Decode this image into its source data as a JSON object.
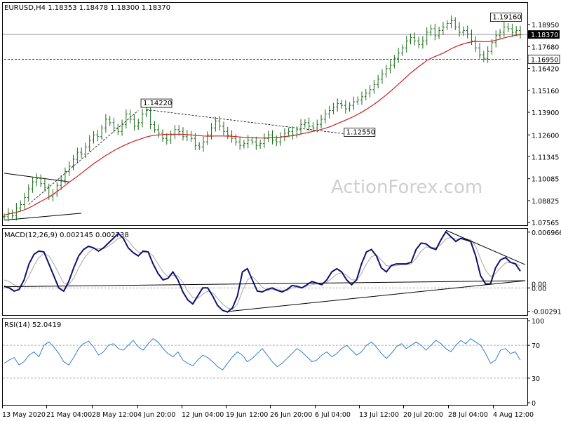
{
  "chart_data": [
    {
      "type": "candlestick",
      "name": "price",
      "header": "EURUSD,H4  1.18353 1.18478 1.18300 1.18370",
      "watermark": "ActionForex.com",
      "yticks": [
        "1.18950",
        "1.17680",
        "1.16420",
        "1.15160",
        "1.13900",
        "1.12600",
        "1.11345",
        "1.10085",
        "1.08825",
        "1.07565"
      ],
      "ytick_values": [
        1.1895,
        1.1768,
        1.1642,
        1.1516,
        1.139,
        1.126,
        1.11345,
        1.10085,
        1.08825,
        1.07565
      ],
      "ylim": [
        1.0745,
        1.2015
      ],
      "current_price_label": "1.18370",
      "current_price": 1.1837,
      "support_label": "1.16950",
      "support_price": 1.1695,
      "annotations": [
        {
          "text": "1.14220",
          "value": 1.1422,
          "x_index": 34
        },
        {
          "text": "1.12550",
          "value": 1.1255,
          "x_index": 84
        },
        {
          "text": "1.19160",
          "value": 1.1916,
          "x_index": 120
        }
      ],
      "close": [
        1.079,
        1.081,
        1.0795,
        1.084,
        1.086,
        1.09,
        1.095,
        1.099,
        1.101,
        1.098,
        1.096,
        1.0905,
        1.092,
        1.097,
        1.1,
        1.105,
        1.108,
        1.112,
        1.116,
        1.115,
        1.119,
        1.123,
        1.126,
        1.125,
        1.13,
        1.135,
        1.133,
        1.13,
        1.128,
        1.132,
        1.138,
        1.135,
        1.131,
        1.133,
        1.138,
        1.14,
        1.132,
        1.129,
        1.127,
        1.124,
        1.123,
        1.126,
        1.129,
        1.128,
        1.125,
        1.126,
        1.124,
        1.12,
        1.119,
        1.122,
        1.126,
        1.13,
        1.134,
        1.131,
        1.128,
        1.126,
        1.124,
        1.122,
        1.12,
        1.121,
        1.123,
        1.122,
        1.12,
        1.121,
        1.124,
        1.126,
        1.123,
        1.122,
        1.125,
        1.127,
        1.128,
        1.126,
        1.129,
        1.132,
        1.133,
        1.131,
        1.13,
        1.132,
        1.135,
        1.138,
        1.14,
        1.142,
        1.144,
        1.143,
        1.141,
        1.143,
        1.145,
        1.146,
        1.148,
        1.15,
        1.152,
        1.155,
        1.158,
        1.161,
        1.164,
        1.166,
        1.17,
        1.173,
        1.176,
        1.18,
        1.182,
        1.18,
        1.178,
        1.18,
        1.185,
        1.187,
        1.183,
        1.186,
        1.188,
        1.19,
        1.1916,
        1.188,
        1.185,
        1.186,
        1.184,
        1.18,
        1.176,
        1.172,
        1.17,
        1.174,
        1.179,
        1.183,
        1.185,
        1.188,
        1.187,
        1.185,
        1.186,
        1.1837
      ],
      "ma": [
        1.08,
        1.0805,
        1.081,
        1.0815,
        1.0822,
        1.083,
        1.084,
        1.0852,
        1.0865,
        1.0878,
        1.089,
        1.0903,
        1.0918,
        1.0935,
        1.0952,
        1.097,
        1.0988,
        1.1005,
        1.1022,
        1.104,
        1.1058,
        1.1076,
        1.1094,
        1.111,
        1.1126,
        1.1142,
        1.1156,
        1.117,
        1.1182,
        1.1194,
        1.1205,
        1.1215,
        1.1224,
        1.1232,
        1.124,
        1.1248,
        1.1254,
        1.1258,
        1.126,
        1.1262,
        1.1263,
        1.1264,
        1.1264,
        1.1264,
        1.1263,
        1.1262,
        1.126,
        1.1258,
        1.1256,
        1.1254,
        1.1253,
        1.1253,
        1.1254,
        1.1254,
        1.1254,
        1.1253,
        1.1252,
        1.125,
        1.1248,
        1.1246,
        1.1245,
        1.1244,
        1.1243,
        1.1242,
        1.1242,
        1.1243,
        1.1244,
        1.1245,
        1.1247,
        1.125,
        1.1253,
        1.1256,
        1.126,
        1.1265,
        1.127,
        1.1275,
        1.128,
        1.1285,
        1.1291,
        1.1298,
        1.1306,
        1.1315,
        1.1325,
        1.1335,
        1.1345,
        1.1355,
        1.1366,
        1.1378,
        1.1391,
        1.1405,
        1.142,
        1.1436,
        1.1453,
        1.1471,
        1.149,
        1.151,
        1.153,
        1.1551,
        1.1572,
        1.1594,
        1.1615,
        1.1634,
        1.1652,
        1.167,
        1.1688,
        1.17,
        1.171,
        1.172,
        1.173,
        1.1742,
        1.1755,
        1.1766,
        1.1775,
        1.1783,
        1.179,
        1.1795,
        1.1797,
        1.1797,
        1.1796,
        1.1796,
        1.1799,
        1.1804,
        1.181,
        1.1817,
        1.1823,
        1.1828,
        1.1833,
        1.1836
      ],
      "trendlines": [
        {
          "from": [
            0,
            1.104
          ],
          "to": [
            16,
            1.099
          ],
          "style": "solid"
        },
        {
          "from": [
            0,
            1.077
          ],
          "to": [
            19,
            1.081
          ],
          "style": "solid"
        },
        {
          "from": [
            6,
            1.086
          ],
          "to": [
            33,
            1.14
          ],
          "style": "dashed"
        },
        {
          "from": [
            35,
            1.1405
          ],
          "to": [
            86,
            1.126
          ],
          "style": "dashed"
        },
        {
          "from": [
            0,
            1.1695
          ],
          "to": [
            127,
            1.1695
          ],
          "style": "dashed"
        }
      ]
    },
    {
      "type": "line",
      "name": "macd",
      "header": "MACD(12,26,9) 0.002145 0.002738",
      "yticks": [
        "0.006966",
        "0.00",
        "-0.002913"
      ],
      "ytick_values": [
        0.006966,
        0.0,
        -0.002913
      ],
      "extra_tick_label": "0.00",
      "ylim": [
        -0.0033,
        0.0073
      ],
      "macd": [
        0.0002,
        0.0,
        -0.0004,
        -0.0002,
        0.001,
        0.003,
        0.0042,
        0.0046,
        0.0045,
        0.003,
        0.0015,
        0.0,
        -0.0004,
        0.0008,
        0.0025,
        0.004,
        0.0048,
        0.0052,
        0.005,
        0.0046,
        0.005,
        0.0056,
        0.0062,
        0.0068,
        0.0062,
        0.005,
        0.0044,
        0.004,
        0.0046,
        0.0045,
        0.003,
        0.0018,
        0.001,
        0.0012,
        0.002,
        0.001,
        -0.0005,
        -0.0015,
        -0.002,
        -0.001,
        0.0,
        0.0,
        -0.001,
        -0.0022,
        -0.0028,
        -0.003,
        -0.0025,
        -0.001,
        0.002,
        0.0024,
        0.001,
        -0.0004,
        -0.0005,
        -0.0002,
        0.0,
        -0.0003,
        -0.0005,
        -0.0002,
        0.0003,
        0.0002,
        0.0,
        0.0004,
        0.0008,
        0.0006,
        0.0004,
        0.001,
        0.002,
        0.0024,
        0.002,
        0.001,
        0.0004,
        0.001,
        0.003,
        0.0045,
        0.0048,
        0.004,
        0.0025,
        0.002,
        0.0028,
        0.003,
        0.003,
        0.003,
        0.0032,
        0.0048,
        0.0056,
        0.0055,
        0.005,
        0.0048,
        0.006,
        0.007,
        0.0064,
        0.0058,
        0.0062,
        0.006,
        0.0058,
        0.004,
        0.0015,
        0.0005,
        0.0005,
        0.0025,
        0.0035,
        0.0038,
        0.0032,
        0.003,
        0.0021
      ],
      "signal": [
        0.001,
        0.0008,
        0.0004,
        0.0,
        0.0004,
        0.0015,
        0.0028,
        0.0038,
        0.0043,
        0.004,
        0.003,
        0.0018,
        0.0006,
        0.0004,
        0.0012,
        0.0025,
        0.0036,
        0.0044,
        0.0049,
        0.0049,
        0.0049,
        0.0052,
        0.0057,
        0.0062,
        0.0064,
        0.0059,
        0.0051,
        0.0045,
        0.0044,
        0.0045,
        0.004,
        0.003,
        0.002,
        0.0014,
        0.0016,
        0.0015,
        0.0007,
        -0.0004,
        -0.0012,
        -0.0013,
        -0.0008,
        -0.0004,
        -0.0006,
        -0.0013,
        -0.002,
        -0.0025,
        -0.0027,
        -0.002,
        -0.0004,
        0.001,
        0.0014,
        0.0008,
        0.0001,
        -0.0003,
        -0.0002,
        -0.0002,
        -0.0003,
        -0.0003,
        0.0,
        0.0001,
        0.0001,
        0.0002,
        0.0004,
        0.0005,
        0.0005,
        0.0007,
        0.0012,
        0.0017,
        0.0019,
        0.0016,
        0.001,
        0.001,
        0.0018,
        0.003,
        0.0039,
        0.0041,
        0.0035,
        0.0028,
        0.0027,
        0.0028,
        0.0029,
        0.0029,
        0.003,
        0.0037,
        0.0046,
        0.0051,
        0.0051,
        0.005,
        0.0054,
        0.0061,
        0.0063,
        0.0061,
        0.0061,
        0.0061,
        0.006,
        0.0052,
        0.0036,
        0.0022,
        0.0014,
        0.0018,
        0.0025,
        0.0031,
        0.0032,
        0.0031,
        0.0027
      ],
      "trendlines": [
        {
          "from": [
            0,
            0.00015
          ],
          "to": [
            105,
            0.0009
          ],
          "style": "solid"
        },
        {
          "from": [
            45,
            -0.00295
          ],
          "to": [
            105,
            0.0009
          ],
          "style": "solid"
        },
        {
          "from": [
            89,
            0.0072
          ],
          "to": [
            105,
            0.0029
          ],
          "style": "solid"
        }
      ]
    },
    {
      "type": "line",
      "name": "rsi",
      "header": "RSI(14) 52.0419",
      "yticks": [
        "100",
        "70",
        "30",
        "0"
      ],
      "ytick_values": [
        100,
        70,
        30,
        0
      ],
      "levels": [
        70,
        30
      ],
      "ylim": [
        0,
        100
      ],
      "values": [
        48,
        52,
        55,
        46,
        50,
        58,
        62,
        56,
        70,
        74,
        68,
        60,
        50,
        46,
        55,
        66,
        72,
        75,
        68,
        58,
        62,
        70,
        72,
        66,
        64,
        70,
        76,
        68,
        64,
        72,
        78,
        74,
        66,
        60,
        56,
        62,
        52,
        48,
        45,
        52,
        58,
        55,
        50,
        44,
        40,
        48,
        56,
        62,
        58,
        50,
        54,
        60,
        66,
        58,
        50,
        44,
        48,
        54,
        60,
        66,
        62,
        56,
        50,
        52,
        58,
        62,
        56,
        60,
        66,
        70,
        64,
        58,
        62,
        70,
        74,
        68,
        60,
        54,
        60,
        68,
        72,
        66,
        70,
        74,
        70,
        64,
        70,
        76,
        72,
        66,
        62,
        70,
        76,
        72,
        78,
        74,
        70,
        60,
        48,
        52,
        64,
        66,
        60,
        62,
        52
      ],
      "xticks": [
        "13 May 2020",
        "21 May 04:00",
        "28 May 12:00",
        "4 Jun 20:00",
        "12 Jun 04:00",
        "19 Jun 12:00",
        "26 Jun 20:00",
        "6 Jul 04:00",
        "13 Jul 12:00",
        "20 Jul 20:00",
        "28 Jul 04:00",
        "4 Aug 12:00"
      ],
      "xtick_px": [
        3,
        66,
        131,
        196,
        259,
        322,
        385,
        449,
        512,
        575,
        639,
        703
      ]
    }
  ]
}
